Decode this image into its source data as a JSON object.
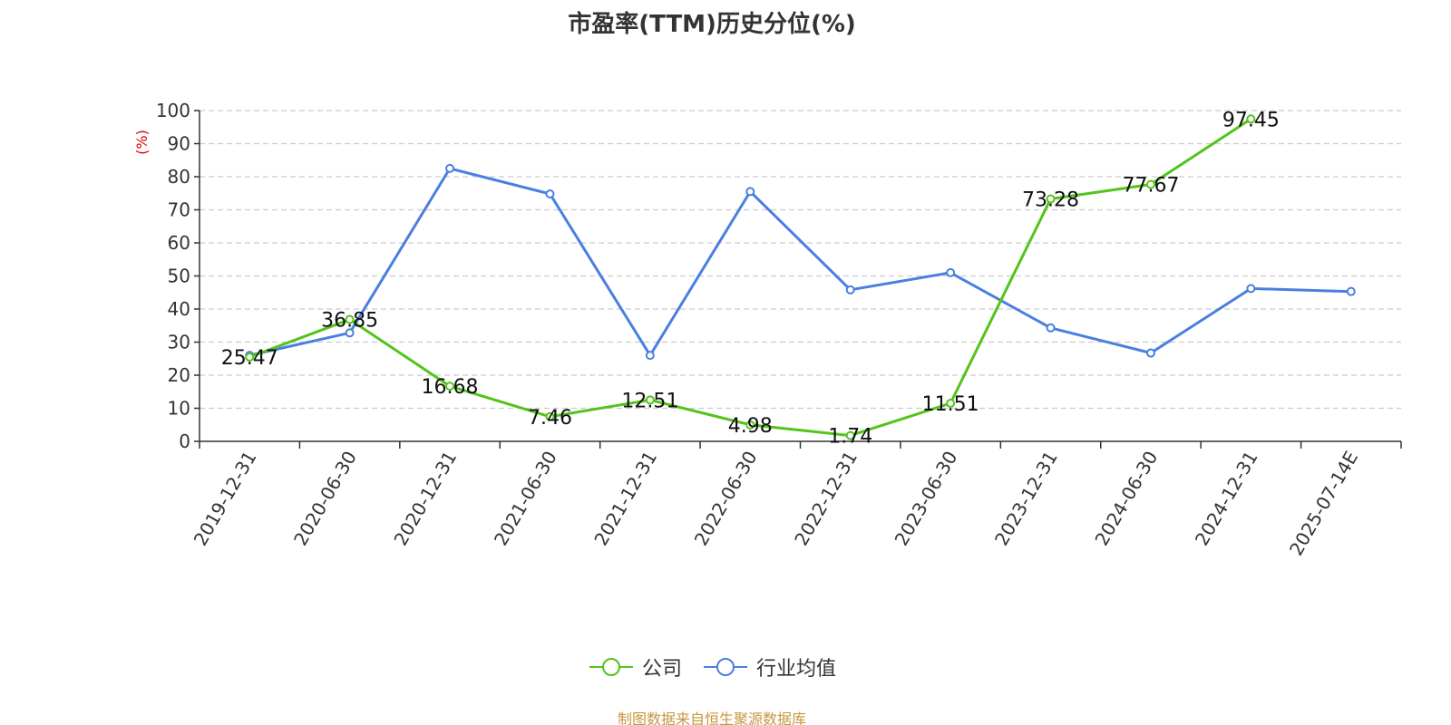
{
  "chart_data": {
    "type": "line",
    "title": "市盈率(TTM)历史分位(%)",
    "ylabel": "(%)",
    "xlabel": "",
    "ylim": [
      0,
      100
    ],
    "yticks": [
      0,
      10,
      20,
      30,
      40,
      50,
      60,
      70,
      80,
      90,
      100
    ],
    "grid": true,
    "legend_position": "bottom",
    "categories": [
      "2019-12-31",
      "2020-06-30",
      "2020-12-31",
      "2021-06-30",
      "2021-12-31",
      "2022-06-30",
      "2022-12-31",
      "2023-06-30",
      "2023-12-31",
      "2024-06-30",
      "2024-12-31",
      "2025-07-14E"
    ],
    "series": [
      {
        "name": "公司",
        "color": "#52c41a",
        "values": [
          25.47,
          36.85,
          16.68,
          7.46,
          12.51,
          4.98,
          1.74,
          11.51,
          73.28,
          77.67,
          97.45,
          null
        ],
        "show_labels": true
      },
      {
        "name": "行业均值",
        "color": "#4a7fe0",
        "values": [
          26.0,
          32.8,
          82.5,
          74.8,
          26.0,
          75.5,
          45.8,
          51.0,
          34.3,
          26.7,
          46.2,
          45.3
        ],
        "show_labels": false
      }
    ]
  },
  "source_note": "制图数据来自恒生聚源数据库",
  "colors": {
    "axis": "#333333",
    "grid": "#cccccc",
    "ylabel": "#e00000"
  }
}
